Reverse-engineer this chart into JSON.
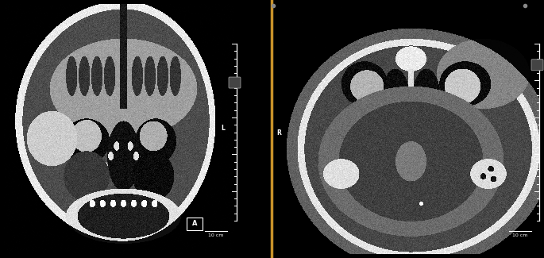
{
  "background_color": "#000000",
  "divider_color": "#C8922A",
  "label_L": "L",
  "label_R": "R",
  "label_A": "A",
  "scale_text": "10 cm",
  "fig_width": 6.85,
  "fig_height": 3.25,
  "dpi": 100
}
